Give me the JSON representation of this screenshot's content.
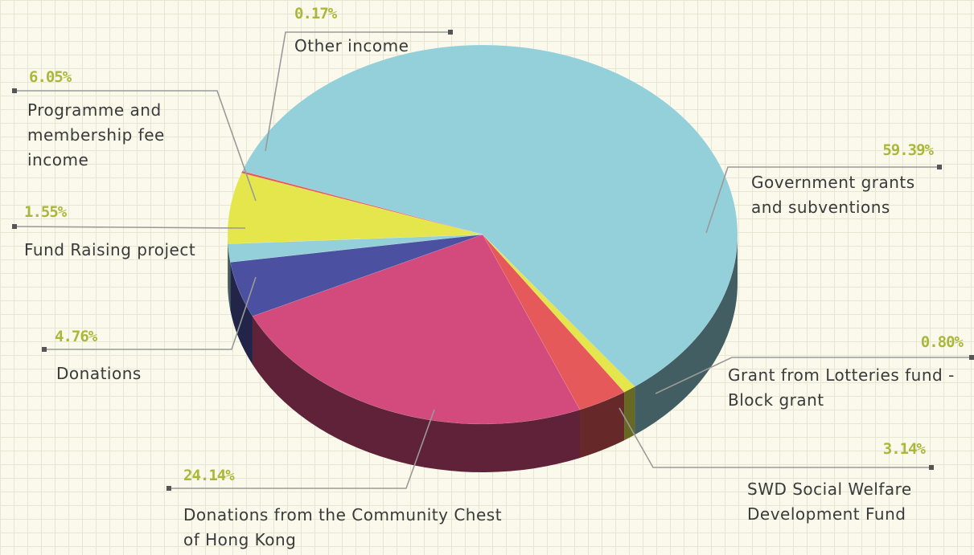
{
  "chart_data": {
    "type": "pie",
    "categories": [
      "Government grants and subventions",
      "Grant from Lotteries fund - Block grant",
      "SWD Social Welfare Development Fund",
      "Donations from the Community Chest of Hong Kong",
      "Donations",
      "Fund Raising project",
      "Programme and membership fee income",
      "Other income"
    ],
    "values": [
      59.39,
      0.8,
      3.14,
      24.14,
      4.76,
      1.55,
      6.05,
      0.17
    ],
    "value_labels": [
      "59.39%",
      "0.80%",
      "3.14%",
      "24.14%",
      "4.76%",
      "1.55%",
      "6.05%",
      "0.17%"
    ],
    "colors": [
      "#93d0da",
      "#e4e64c",
      "#e5595a",
      "#d34b7c",
      "#4b50a0",
      "#93d0da",
      "#e4e64c",
      "#e5595a"
    ]
  }
}
